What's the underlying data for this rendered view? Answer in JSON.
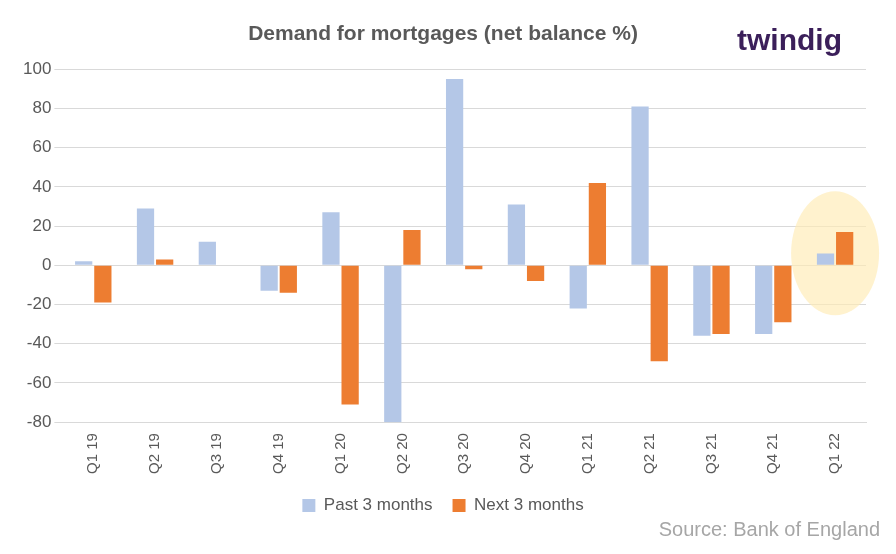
{
  "chart_data": {
    "type": "bar",
    "title": "Demand for mortgages (net balance %)",
    "logo": "twindig",
    "source": "Source: Bank of England",
    "categories": [
      "Q1 19",
      "Q2 19",
      "Q3 19",
      "Q4 19",
      "Q1 20",
      "Q2 20",
      "Q3 20",
      "Q4 20",
      "Q1 21",
      "Q2 21",
      "Q3 21",
      "Q4 21",
      "Q1 22"
    ],
    "series": [
      {
        "name": "Past 3 months",
        "color": "#b4c7e7",
        "values": [
          2,
          29,
          12,
          -13,
          27,
          -80,
          95,
          31,
          -22,
          81,
          -36,
          -35,
          6
        ]
      },
      {
        "name": "Next 3 months",
        "color": "#ed7d31",
        "values": [
          -19,
          3,
          0,
          -14,
          -71,
          18,
          -2,
          -8,
          42,
          -49,
          -35,
          -29,
          17
        ]
      }
    ],
    "ylim": [
      -80,
      100
    ],
    "yticks": [
      -80,
      -60,
      -40,
      -20,
      0,
      20,
      40,
      60,
      80,
      100
    ],
    "grid": true,
    "legend": "bottom"
  }
}
